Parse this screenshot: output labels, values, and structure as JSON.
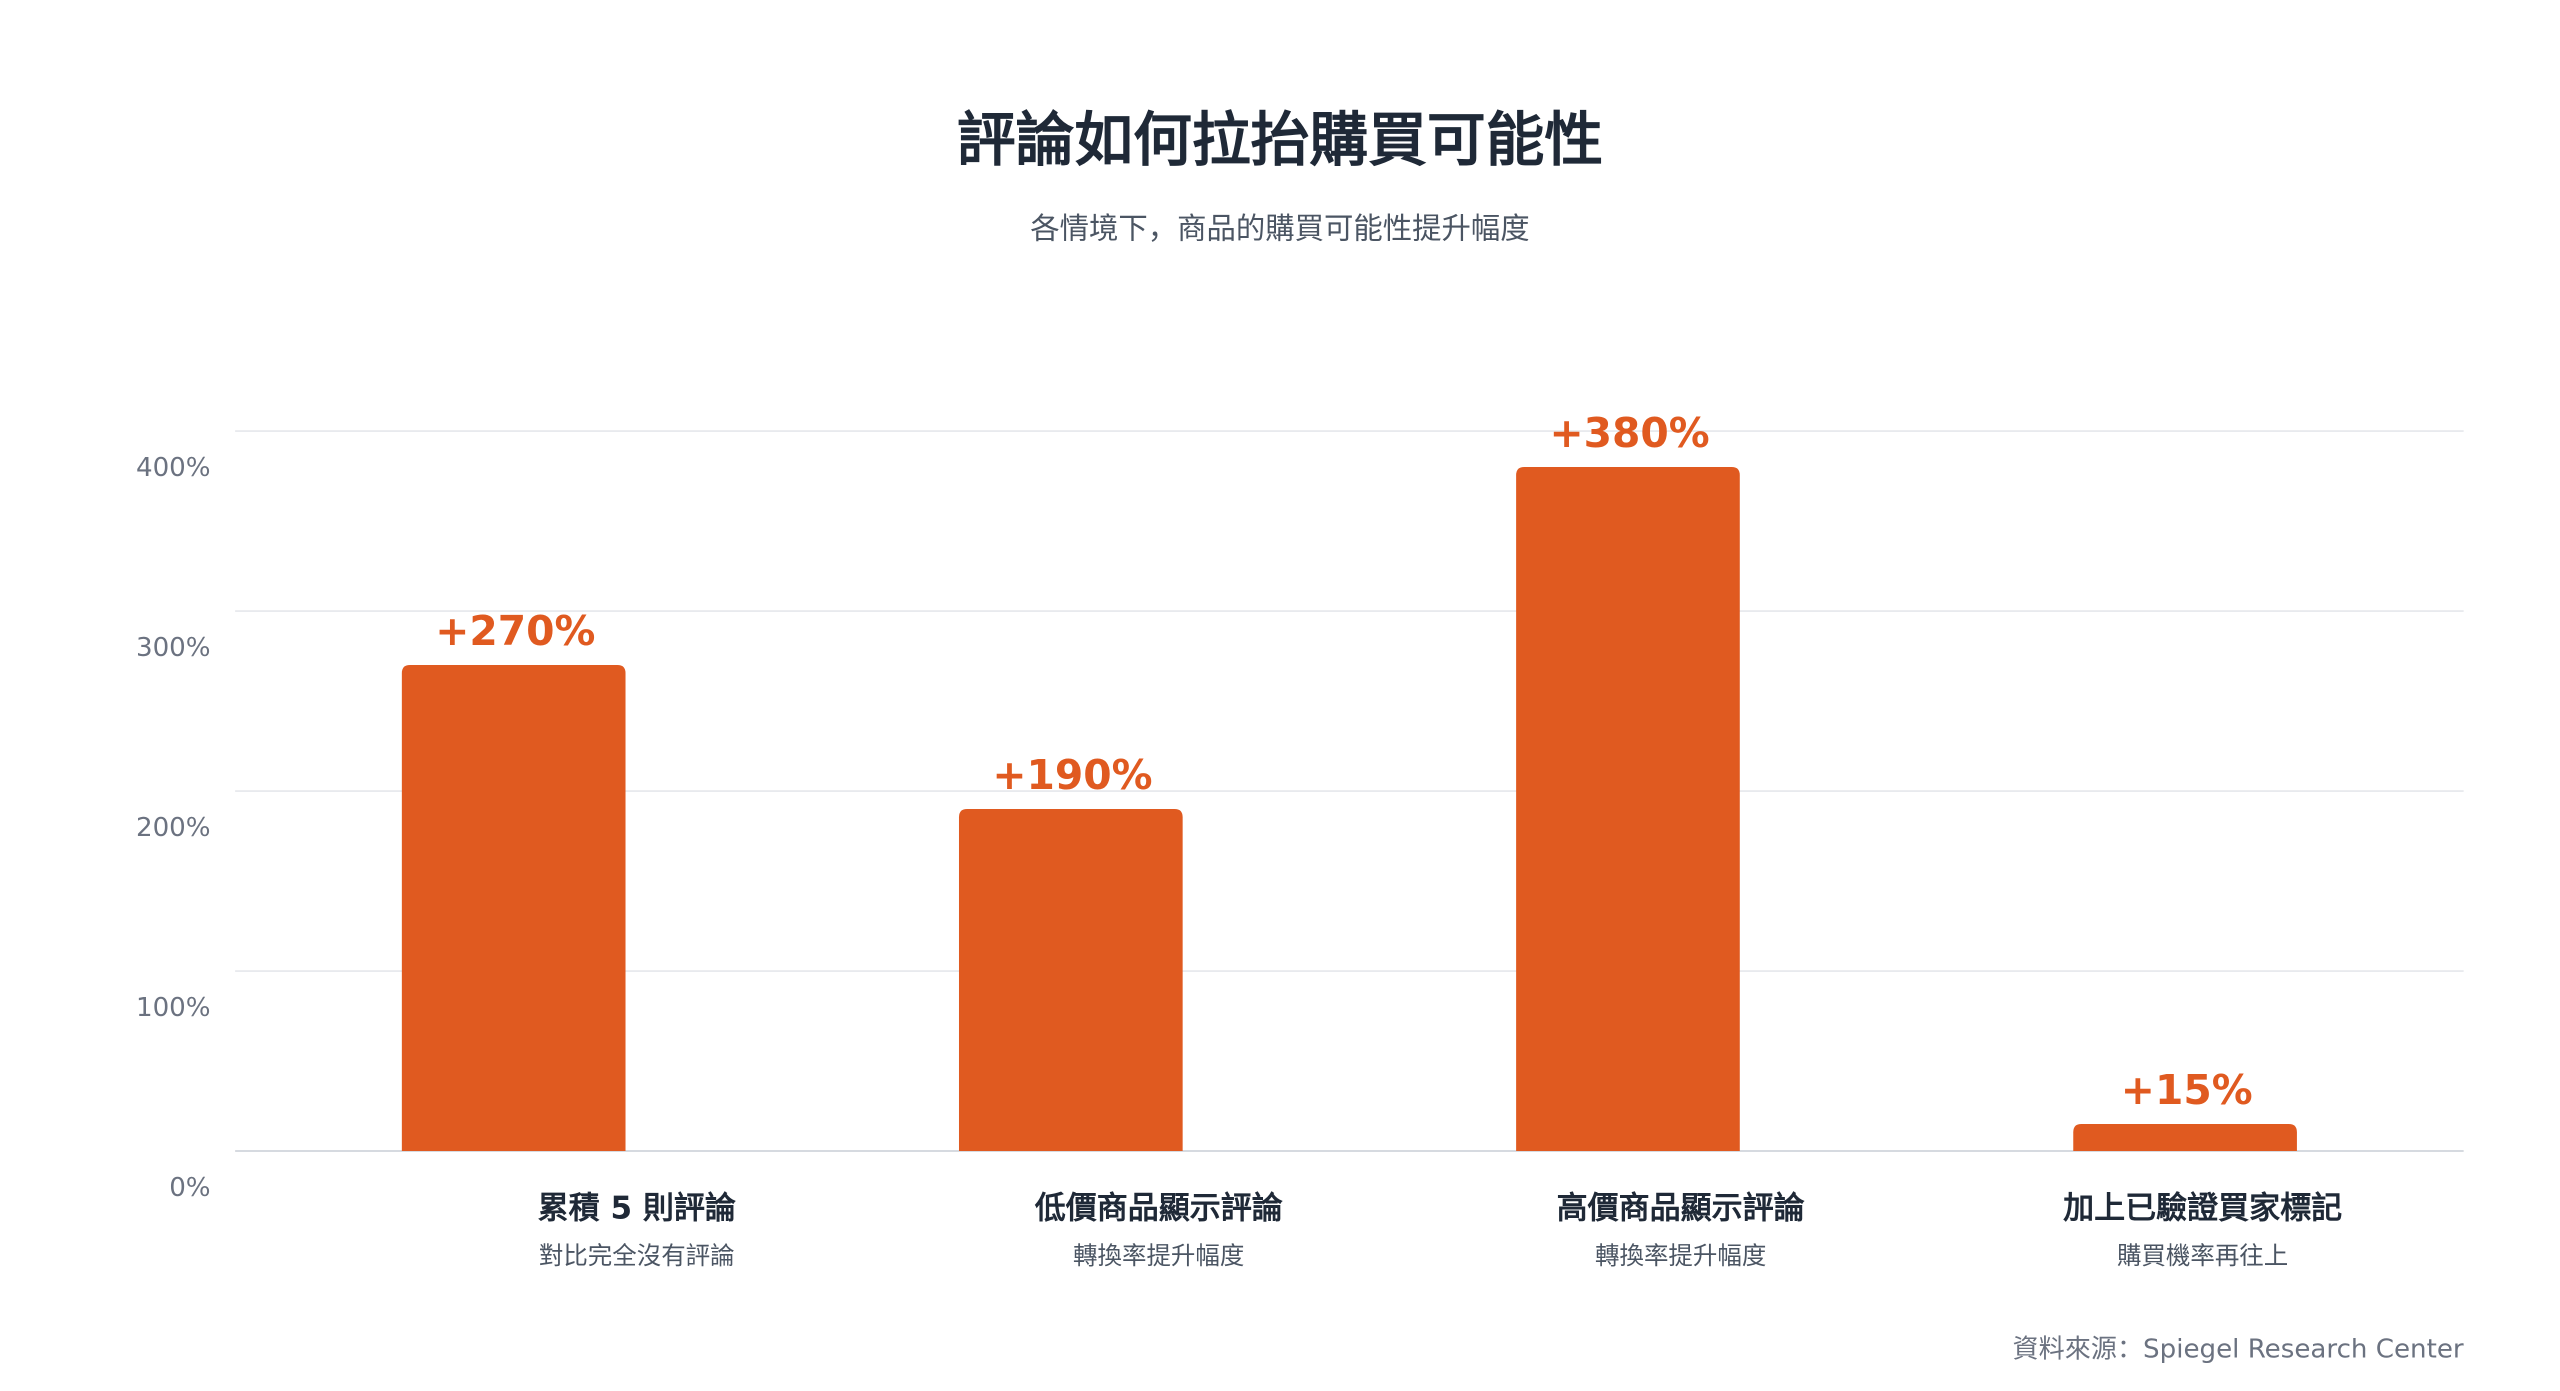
{
  "chart_data": {
    "type": "bar",
    "title": "評論如何拉抬購買可能性",
    "subtitle": "各情境下，商品的購買可能性提升幅度",
    "categories": [
      "累積 5 則評論",
      "低價商品顯示評論",
      "高價商品顯示評論",
      "加上已驗證買家標記"
    ],
    "category_subtitles": [
      "對比完全沒有評論",
      "轉換率提升幅度",
      "轉換率提升幅度",
      "購買機率再往上"
    ],
    "values": [
      270,
      190,
      380,
      15
    ],
    "value_labels": [
      "+270%",
      "+190%",
      "+380%",
      "+15%"
    ],
    "color": "#e05a20",
    "ylim": [
      0,
      400
    ],
    "yticks": [
      {
        "value": 0,
        "label": "0%"
      },
      {
        "value": 100,
        "label": "100%"
      },
      {
        "value": 200,
        "label": "200%"
      },
      {
        "value": 300,
        "label": "300%"
      },
      {
        "value": 400,
        "label": "400%"
      }
    ],
    "grid": true,
    "source": "資料來源：Spiegel Research Center"
  }
}
